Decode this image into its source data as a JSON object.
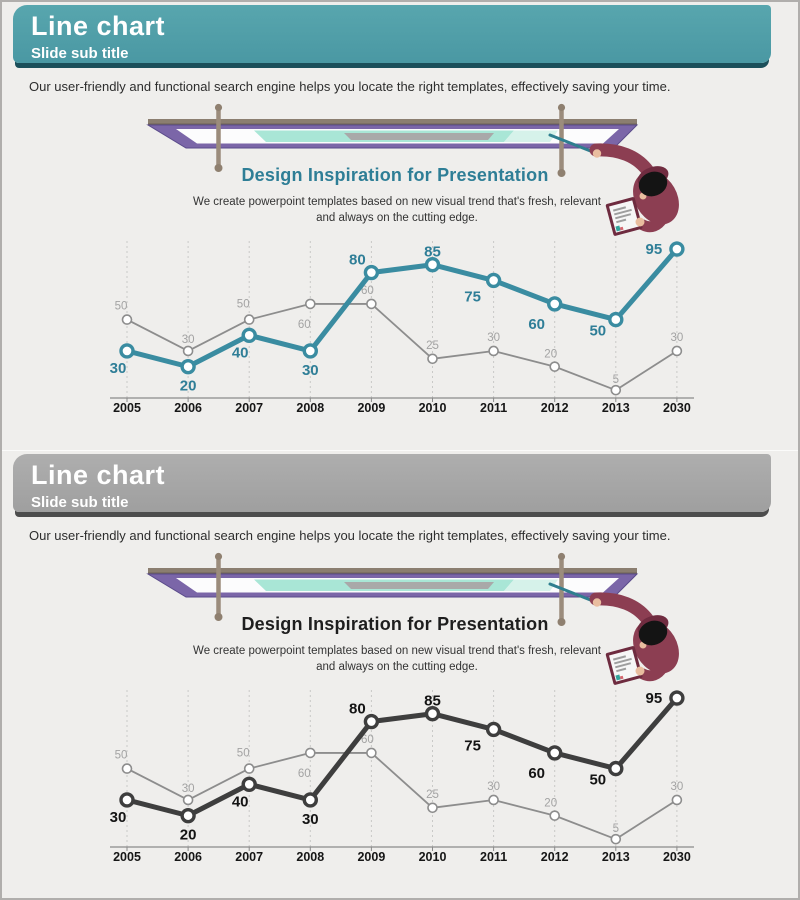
{
  "colors": {
    "teal_header": "#4a98a3",
    "teal_header_shadow": "#1b4f5a",
    "gray_header": "#a3a3a3",
    "gray_header_shadow": "#4d4d4d",
    "teal_line": "#3a8ca1",
    "dark_line": "#3e3e3e",
    "secondary_line": "#8d8d8d",
    "teal_heading": "#2e7e96",
    "board_purple": "#7b66a8",
    "board_mint": "#a9e6d6",
    "person_maroon": "#8c3e52",
    "slide_background": "#efeeec"
  },
  "slides": [
    {
      "theme": "teal",
      "title": "Line chart",
      "subtitle": "Slide sub title",
      "intro": "Our user-friendly and functional search engine helps you locate the right templates, effectively saving your time.",
      "design_heading": "Design Inspiration for Presentation",
      "design_sub": "We create powerpoint templates based on new visual trend that's fresh, relevant and always on the cutting edge."
    },
    {
      "theme": "gray",
      "title": "Line chart",
      "subtitle": "Slide sub title",
      "intro": "Our user-friendly and functional search engine helps you locate the right templates, effectively saving your time.",
      "design_heading": "Design Inspiration for Presentation",
      "design_sub": "We create powerpoint templates based on new visual trend that's fresh, relevant and always on the cutting edge."
    }
  ],
  "chart_data": [
    {
      "type": "line",
      "categories": [
        "2005",
        "2006",
        "2007",
        "2008",
        "2009",
        "2010",
        "2011",
        "2012",
        "2013",
        "2030"
      ],
      "ylim": [
        0,
        100
      ],
      "grid": "dashed-vertical",
      "legend": "none",
      "series": [
        {
          "name": "primary",
          "values": [
            30,
            20,
            40,
            30,
            80,
            85,
            75,
            60,
            50,
            95
          ],
          "color": "#3a8ca1",
          "label_color": "#2f7e97",
          "line_width": 5,
          "marker_radius": 6,
          "marker_stroke": 3.4,
          "font_size": 15,
          "font_weight": "bold",
          "label_offsets": [
            [
              -9,
              22
            ],
            [
              0,
              24
            ],
            [
              -9,
              22
            ],
            [
              0,
              24
            ],
            [
              -14,
              -8
            ],
            [
              0,
              -8
            ],
            [
              -21,
              21
            ],
            [
              -18,
              25
            ],
            [
              -18,
              16
            ],
            [
              -23,
              5
            ]
          ]
        },
        {
          "name": "secondary",
          "values": [
            50,
            30,
            50,
            60,
            60,
            25,
            30,
            20,
            5,
            30
          ],
          "color": "#8d8d8d",
          "label_color": "#a3a3a3",
          "line_width": 1.8,
          "marker_radius": 4.5,
          "marker_stroke": 1.6,
          "font_size": 11.5,
          "font_weight": "normal",
          "label_offsets": [
            [
              -6,
              -10
            ],
            [
              0,
              -8
            ],
            [
              -6,
              -12
            ],
            [
              -6,
              24
            ],
            [
              -4,
              -10
            ],
            [
              0,
              -10
            ],
            [
              0,
              -10
            ],
            [
              -4,
              -9
            ],
            [
              0,
              -7
            ],
            [
              0,
              -10
            ]
          ]
        }
      ]
    },
    {
      "type": "line",
      "categories": [
        "2005",
        "2006",
        "2007",
        "2008",
        "2009",
        "2010",
        "2011",
        "2012",
        "2013",
        "2030"
      ],
      "ylim": [
        0,
        100
      ],
      "grid": "dashed-vertical",
      "legend": "none",
      "series": [
        {
          "name": "primary",
          "values": [
            30,
            20,
            40,
            30,
            80,
            85,
            75,
            60,
            50,
            95
          ],
          "color": "#3e3e3e",
          "label_color": "#141414",
          "line_width": 5,
          "marker_radius": 6,
          "marker_stroke": 3.4,
          "font_size": 15,
          "font_weight": "bold",
          "label_offsets": [
            [
              -9,
              22
            ],
            [
              0,
              24
            ],
            [
              -9,
              22
            ],
            [
              0,
              24
            ],
            [
              -14,
              -8
            ],
            [
              0,
              -8
            ],
            [
              -21,
              21
            ],
            [
              -18,
              25
            ],
            [
              -18,
              16
            ],
            [
              -23,
              5
            ]
          ]
        },
        {
          "name": "secondary",
          "values": [
            50,
            30,
            50,
            60,
            60,
            25,
            30,
            20,
            5,
            30
          ],
          "color": "#8d8d8d",
          "label_color": "#a3a3a3",
          "line_width": 1.8,
          "marker_radius": 4.5,
          "marker_stroke": 1.6,
          "font_size": 11.5,
          "font_weight": "normal",
          "label_offsets": [
            [
              -6,
              -10
            ],
            [
              0,
              -8
            ],
            [
              -6,
              -12
            ],
            [
              -6,
              24
            ],
            [
              -4,
              -10
            ],
            [
              0,
              -10
            ],
            [
              0,
              -10
            ],
            [
              -4,
              -9
            ],
            [
              0,
              -7
            ],
            [
              0,
              -10
            ]
          ]
        }
      ]
    }
  ]
}
